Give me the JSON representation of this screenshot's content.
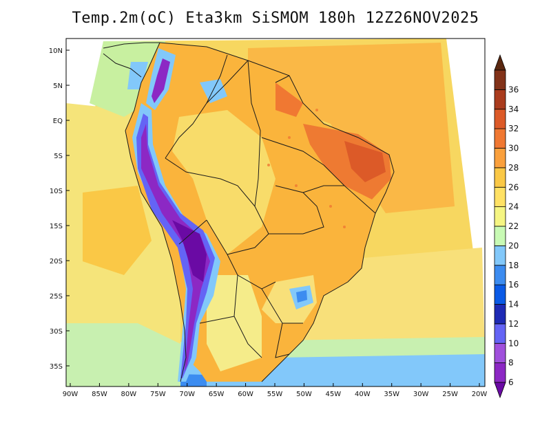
{
  "title": "Temp.2m(oC) Eta3km SiSMOM 180h 12Z26NOV2025",
  "map": {
    "variable": "2 m air temperature",
    "units": "oC",
    "model": "Eta3km SiSMOM",
    "forecast_hour": "180h",
    "init_time": "12Z26NOV2025",
    "region": "South America",
    "lat_labels": [
      "10N",
      "5N",
      "EQ",
      "5S",
      "10S",
      "15S",
      "20S",
      "25S",
      "30S",
      "35S"
    ],
    "lat_values": [
      10,
      5,
      0,
      -5,
      -10,
      -15,
      -20,
      -25,
      -30,
      -35
    ],
    "lon_labels": [
      "90W",
      "85W",
      "80W",
      "75W",
      "70W",
      "65W",
      "60W",
      "55W",
      "50W",
      "45W",
      "40W",
      "35W",
      "30W",
      "25W",
      "20W"
    ],
    "lon_values": [
      -90,
      -85,
      -80,
      -75,
      -70,
      -65,
      -60,
      -55,
      -50,
      -45,
      -40,
      -35,
      -30,
      -25,
      -20
    ]
  },
  "colorbar": {
    "labels": [
      "6",
      "8",
      "10",
      "12",
      "14",
      "16",
      "18",
      "20",
      "22",
      "24",
      "26",
      "28",
      "30",
      "32",
      "34",
      "36"
    ],
    "values": [
      6,
      8,
      10,
      12,
      14,
      16,
      18,
      20,
      22,
      24,
      26,
      28,
      30,
      32,
      34,
      36
    ],
    "colors": [
      "#6a0aa4",
      "#8c28c4",
      "#a050dc",
      "#6464f5",
      "#1e2ab4",
      "#0a5ae6",
      "#3c8cf0",
      "#82c8fa",
      "#c8fab4",
      "#f5f582",
      "#ffe164",
      "#fac846",
      "#faa03c",
      "#f07832",
      "#dc5a28",
      "#aa3c1e",
      "#823219",
      "#5a2810"
    ]
  }
}
